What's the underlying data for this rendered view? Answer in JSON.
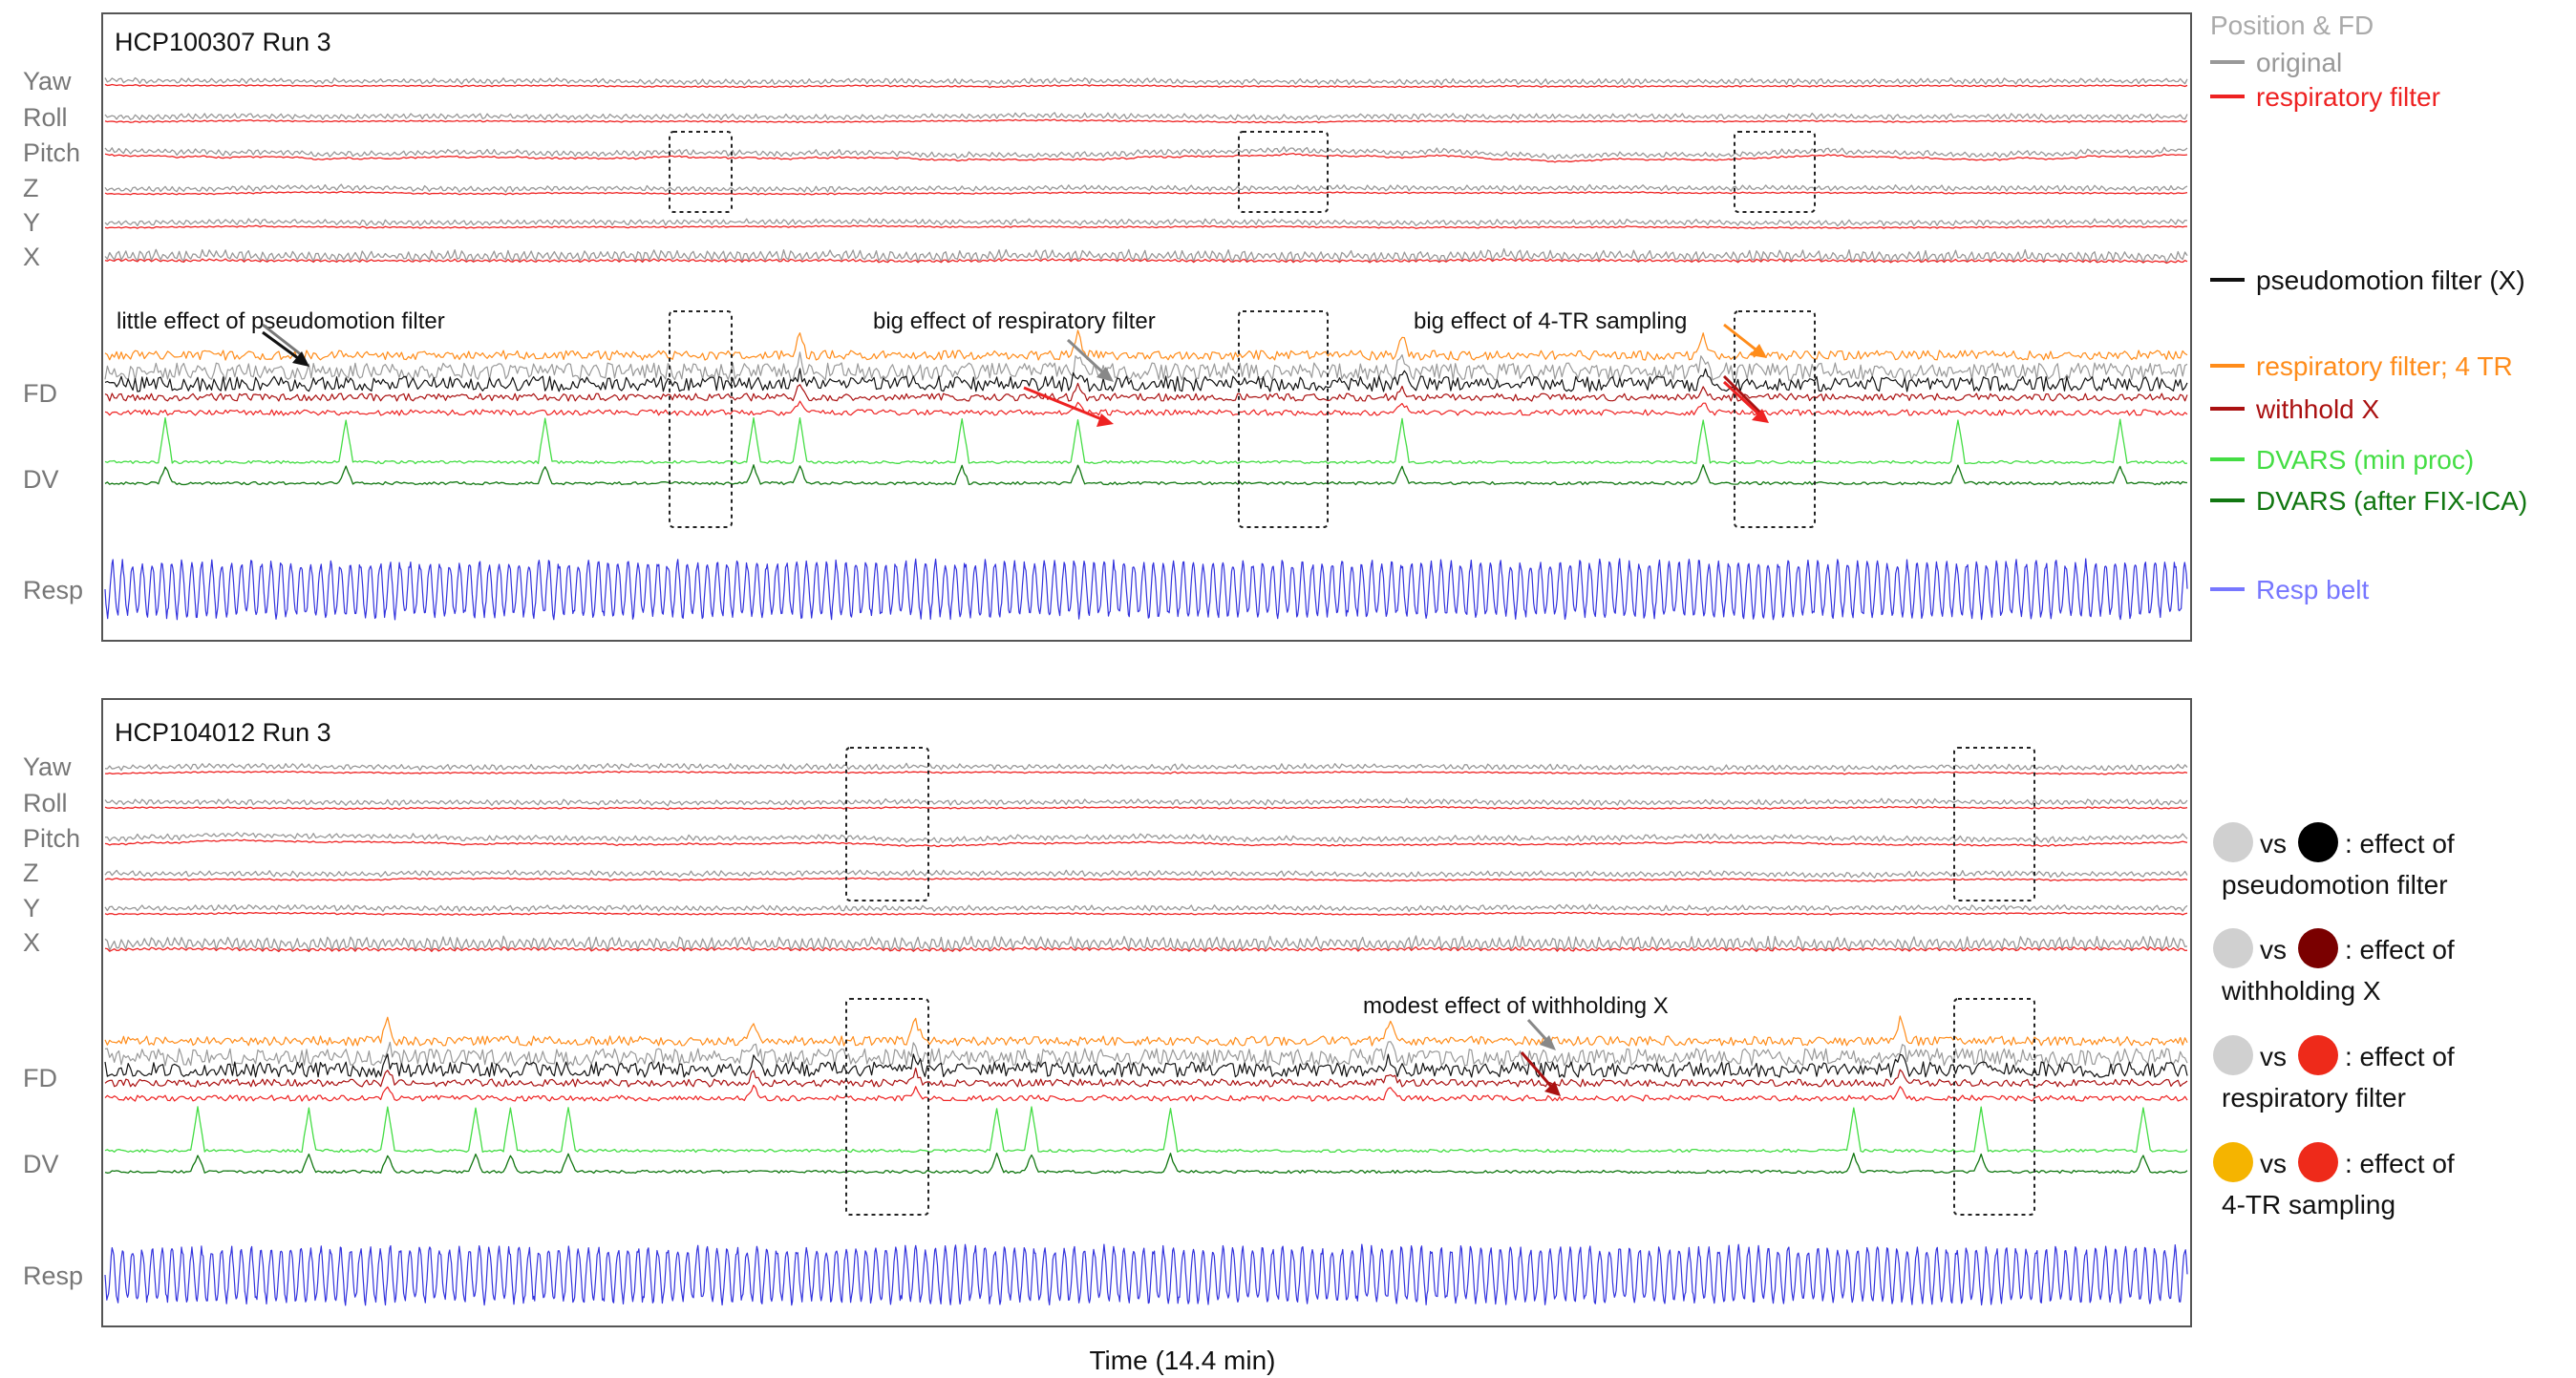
{
  "figure": {
    "xlabel": "Time (14.4 min)",
    "row_labels": [
      "Yaw",
      "Roll",
      "Pitch",
      "Z",
      "Y",
      "X",
      "FD",
      "DV",
      "Resp"
    ]
  },
  "colors": {
    "original": "#999999",
    "respiratory_filter": "#ee2222",
    "pseudomotion_filter": "#111111",
    "resp_4tr": "#ff8c1a",
    "withhold_x": "#aa1111",
    "dvars_min": "#44dd44",
    "dvars_fix": "#117711",
    "resp_belt": "#3333dd",
    "dot_gray": "#d0d0d0",
    "dot_black": "#000000",
    "dot_darkred": "#7a0000",
    "dot_red": "#ee2a1a",
    "dot_orange": "#f5b400"
  },
  "legend": {
    "section_title": "Position & FD",
    "items": [
      {
        "label": "original",
        "color": "#999999"
      },
      {
        "label": "respiratory filter",
        "color": "#ee2222"
      },
      {
        "label": "pseudomotion filter (X)",
        "color": "#111111"
      },
      {
        "label": "respiratory filter; 4 TR",
        "color": "#ff8c1a"
      },
      {
        "label": "withhold X",
        "color": "#aa1111"
      },
      {
        "label": "DVARS (min proc)",
        "color": "#44dd44"
      },
      {
        "label": "DVARS (after FIX-ICA)",
        "color": "#117711"
      },
      {
        "label": "Resp belt",
        "color": "#3333dd"
      }
    ],
    "comparisons": [
      {
        "vs": "vs",
        "line1": ": effect of",
        "line2": "pseudomotion filter",
        "left_color": "#d0d0d0",
        "right_color": "#000000"
      },
      {
        "vs": "vs",
        "line1": ": effect of",
        "line2": "withholding X",
        "left_color": "#d0d0d0",
        "right_color": "#7a0000"
      },
      {
        "vs": "vs",
        "line1": ": effect of",
        "line2": "respiratory filter",
        "left_color": "#d0d0d0",
        "right_color": "#ee2a1a"
      },
      {
        "vs": "vs",
        "line1": ": effect of",
        "line2": "4-TR sampling",
        "left_color": "#f5b400",
        "right_color": "#ee2a1a"
      }
    ]
  },
  "panels": [
    {
      "title": "HCP100307 Run 3",
      "annotations": [
        "little effect of pseudomotion filter",
        "big effect of respiratory filter",
        "big effect of 4-TR sampling"
      ],
      "highlight_boxes": 3
    },
    {
      "title": "HCP104012 Run 3",
      "annotations": [
        "modest effect of withholding X"
      ],
      "highlight_boxes": 2
    }
  ],
  "chart_data": [
    {
      "type": "line",
      "title": "HCP100307 Run 3",
      "xlabel": "Time (14.4 min)",
      "x_range": [
        0,
        14.4
      ],
      "grid": false,
      "legend_placement": "right",
      "series": [
        {
          "name": "original",
          "rows": [
            "Yaw",
            "Roll",
            "Pitch",
            "Z",
            "Y",
            "X",
            "FD"
          ]
        },
        {
          "name": "respiratory filter",
          "rows": [
            "Yaw",
            "Roll",
            "Pitch",
            "Z",
            "Y",
            "X",
            "FD"
          ]
        },
        {
          "name": "pseudomotion filter (X)",
          "rows": [
            "FD"
          ]
        },
        {
          "name": "respiratory filter; 4 TR",
          "rows": [
            "FD"
          ]
        },
        {
          "name": "withhold X",
          "rows": [
            "FD"
          ]
        },
        {
          "name": "DVARS (min proc)",
          "rows": [
            "DV"
          ]
        },
        {
          "name": "DVARS (after FIX-ICA)",
          "rows": [
            "DV"
          ]
        },
        {
          "name": "Resp belt",
          "rows": [
            "Resp"
          ]
        }
      ]
    },
    {
      "type": "line",
      "title": "HCP104012 Run 3",
      "xlabel": "Time (14.4 min)",
      "x_range": [
        0,
        14.4
      ],
      "grid": false,
      "legend_placement": "right",
      "series": [
        {
          "name": "original",
          "rows": [
            "Yaw",
            "Roll",
            "Pitch",
            "Z",
            "Y",
            "X",
            "FD"
          ]
        },
        {
          "name": "respiratory filter",
          "rows": [
            "Yaw",
            "Roll",
            "Pitch",
            "Z",
            "Y",
            "X",
            "FD"
          ]
        },
        {
          "name": "pseudomotion filter (X)",
          "rows": [
            "FD"
          ]
        },
        {
          "name": "respiratory filter; 4 TR",
          "rows": [
            "FD"
          ]
        },
        {
          "name": "withhold X",
          "rows": [
            "FD"
          ]
        },
        {
          "name": "DVARS (min proc)",
          "rows": [
            "DV"
          ]
        },
        {
          "name": "DVARS (after FIX-ICA)",
          "rows": [
            "DV"
          ]
        },
        {
          "name": "Resp belt",
          "rows": [
            "Resp"
          ]
        }
      ]
    }
  ]
}
